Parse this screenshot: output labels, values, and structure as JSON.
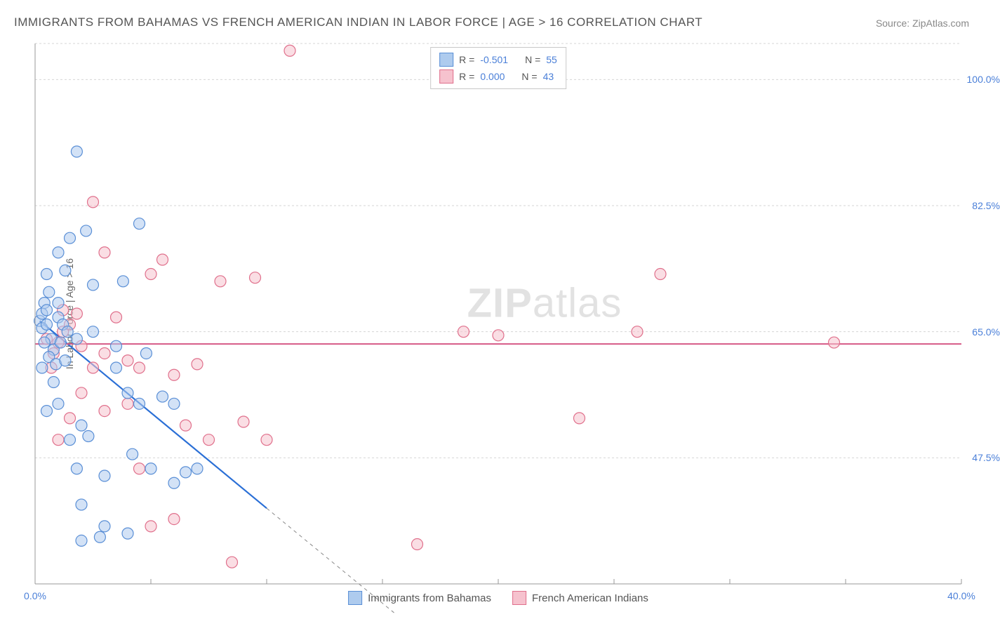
{
  "title": "IMMIGRANTS FROM BAHAMAS VS FRENCH AMERICAN INDIAN IN LABOR FORCE | AGE > 16 CORRELATION CHART",
  "source": "Source: ZipAtlas.com",
  "y_axis_label": "In Labor Force | Age > 16",
  "watermark": "ZIPatlas",
  "chart": {
    "type": "scatter",
    "xlim": [
      0,
      40
    ],
    "ylim": [
      30,
      105
    ],
    "x_ticks": [
      0,
      5,
      10,
      15,
      20,
      25,
      30,
      35,
      40
    ],
    "x_tick_labels": {
      "0": "0.0%",
      "40": "40.0%"
    },
    "y_gridlines": [
      47.5,
      65.0,
      82.5,
      100.0,
      105.0
    ],
    "y_tick_labels": {
      "47.5": "47.5%",
      "65.0": "65.0%",
      "82.5": "82.5%",
      "100.0": "100.0%"
    },
    "background_color": "#ffffff",
    "grid_color": "#d5d5d5",
    "marker_radius": 8,
    "marker_stroke_width": 1.2,
    "series": [
      {
        "name": "Immigrants from Bahamas",
        "fill": "#aecbee",
        "stroke": "#5a8fd6",
        "fill_opacity": 0.55,
        "R": "-0.501",
        "N": "55",
        "trend": {
          "x1": 0.2,
          "y1": 66.5,
          "x2": 10.0,
          "y2": 40.5,
          "color": "#2a6fd6",
          "width": 2.2,
          "dash_ext_x2": 15.5,
          "dash_ext_y2": 26
        },
        "points": [
          [
            0.2,
            66.5
          ],
          [
            0.3,
            67.5
          ],
          [
            0.4,
            69
          ],
          [
            0.5,
            68
          ],
          [
            0.6,
            70.5
          ],
          [
            0.3,
            65.5
          ],
          [
            0.5,
            66
          ],
          [
            0.7,
            64
          ],
          [
            0.4,
            63.5
          ],
          [
            0.8,
            62.5
          ],
          [
            0.6,
            61.5
          ],
          [
            0.9,
            60.5
          ],
          [
            0.3,
            60
          ],
          [
            1.0,
            67
          ],
          [
            1.2,
            66
          ],
          [
            1.4,
            65
          ],
          [
            1.0,
            69
          ],
          [
            1.1,
            63.5
          ],
          [
            1.3,
            61
          ],
          [
            0.5,
            73
          ],
          [
            1.5,
            78
          ],
          [
            1.8,
            90
          ],
          [
            2.2,
            79
          ],
          [
            1.0,
            76
          ],
          [
            1.3,
            73.5
          ],
          [
            2.5,
            71.5
          ],
          [
            3.8,
            72
          ],
          [
            4.5,
            80
          ],
          [
            2.0,
            52
          ],
          [
            2.3,
            50.5
          ],
          [
            1.5,
            50
          ],
          [
            2.8,
            36.5
          ],
          [
            1.8,
            46
          ],
          [
            3.0,
            45
          ],
          [
            4.2,
            48
          ],
          [
            5.0,
            46
          ],
          [
            4.5,
            55
          ],
          [
            5.5,
            56
          ],
          [
            4.0,
            56.5
          ],
          [
            3.5,
            60
          ],
          [
            6.0,
            44
          ],
          [
            6.5,
            45.5
          ],
          [
            7.0,
            46
          ],
          [
            2.0,
            41
          ],
          [
            3.0,
            38
          ],
          [
            4.0,
            37
          ],
          [
            6.0,
            55
          ],
          [
            3.5,
            63
          ],
          [
            4.8,
            62
          ],
          [
            2.5,
            65
          ],
          [
            1.8,
            64
          ],
          [
            0.8,
            58
          ],
          [
            1.0,
            55
          ],
          [
            0.5,
            54
          ],
          [
            2.0,
            36
          ]
        ]
      },
      {
        "name": "French American Indians",
        "fill": "#f6c2ce",
        "stroke": "#e0708c",
        "fill_opacity": 0.55,
        "R": "0.000",
        "N": "43",
        "trend": {
          "x1": 0,
          "y1": 63.3,
          "x2": 40,
          "y2": 63.3,
          "color": "#d65a86",
          "width": 2.0
        },
        "points": [
          [
            0.5,
            64
          ],
          [
            0.8,
            62
          ],
          [
            1.0,
            63.5
          ],
          [
            1.2,
            65
          ],
          [
            1.5,
            66
          ],
          [
            1.8,
            67.5
          ],
          [
            2.0,
            63
          ],
          [
            2.5,
            60
          ],
          [
            3.0,
            62
          ],
          [
            3.5,
            67
          ],
          [
            4.0,
            61
          ],
          [
            4.5,
            60
          ],
          [
            5.0,
            73
          ],
          [
            5.5,
            75
          ],
          [
            3.0,
            76
          ],
          [
            2.5,
            83
          ],
          [
            11.0,
            104
          ],
          [
            6.0,
            59
          ],
          [
            7.0,
            60.5
          ],
          [
            8.0,
            72
          ],
          [
            9.5,
            72.5
          ],
          [
            6.5,
            52
          ],
          [
            7.5,
            50
          ],
          [
            9.0,
            52.5
          ],
          [
            10.0,
            50
          ],
          [
            4.5,
            46
          ],
          [
            5.0,
            38
          ],
          [
            6.0,
            39
          ],
          [
            8.5,
            33
          ],
          [
            3.0,
            54
          ],
          [
            2.0,
            56.5
          ],
          [
            1.5,
            53
          ],
          [
            1.0,
            50
          ],
          [
            16.5,
            35.5
          ],
          [
            18.5,
            65
          ],
          [
            20.0,
            64.5
          ],
          [
            26.0,
            65
          ],
          [
            27.0,
            73
          ],
          [
            23.5,
            53
          ],
          [
            34.5,
            63.5
          ],
          [
            1.2,
            68
          ],
          [
            0.7,
            60
          ],
          [
            4.0,
            55
          ]
        ]
      }
    ]
  },
  "legend_top": {
    "r_label": "R =",
    "n_label": "N ="
  },
  "legend_bottom": [
    {
      "swatch_fill": "#aecbee",
      "swatch_stroke": "#5a8fd6",
      "label": "Immigrants from Bahamas"
    },
    {
      "swatch_fill": "#f6c2ce",
      "swatch_stroke": "#e0708c",
      "label": "French American Indians"
    }
  ]
}
